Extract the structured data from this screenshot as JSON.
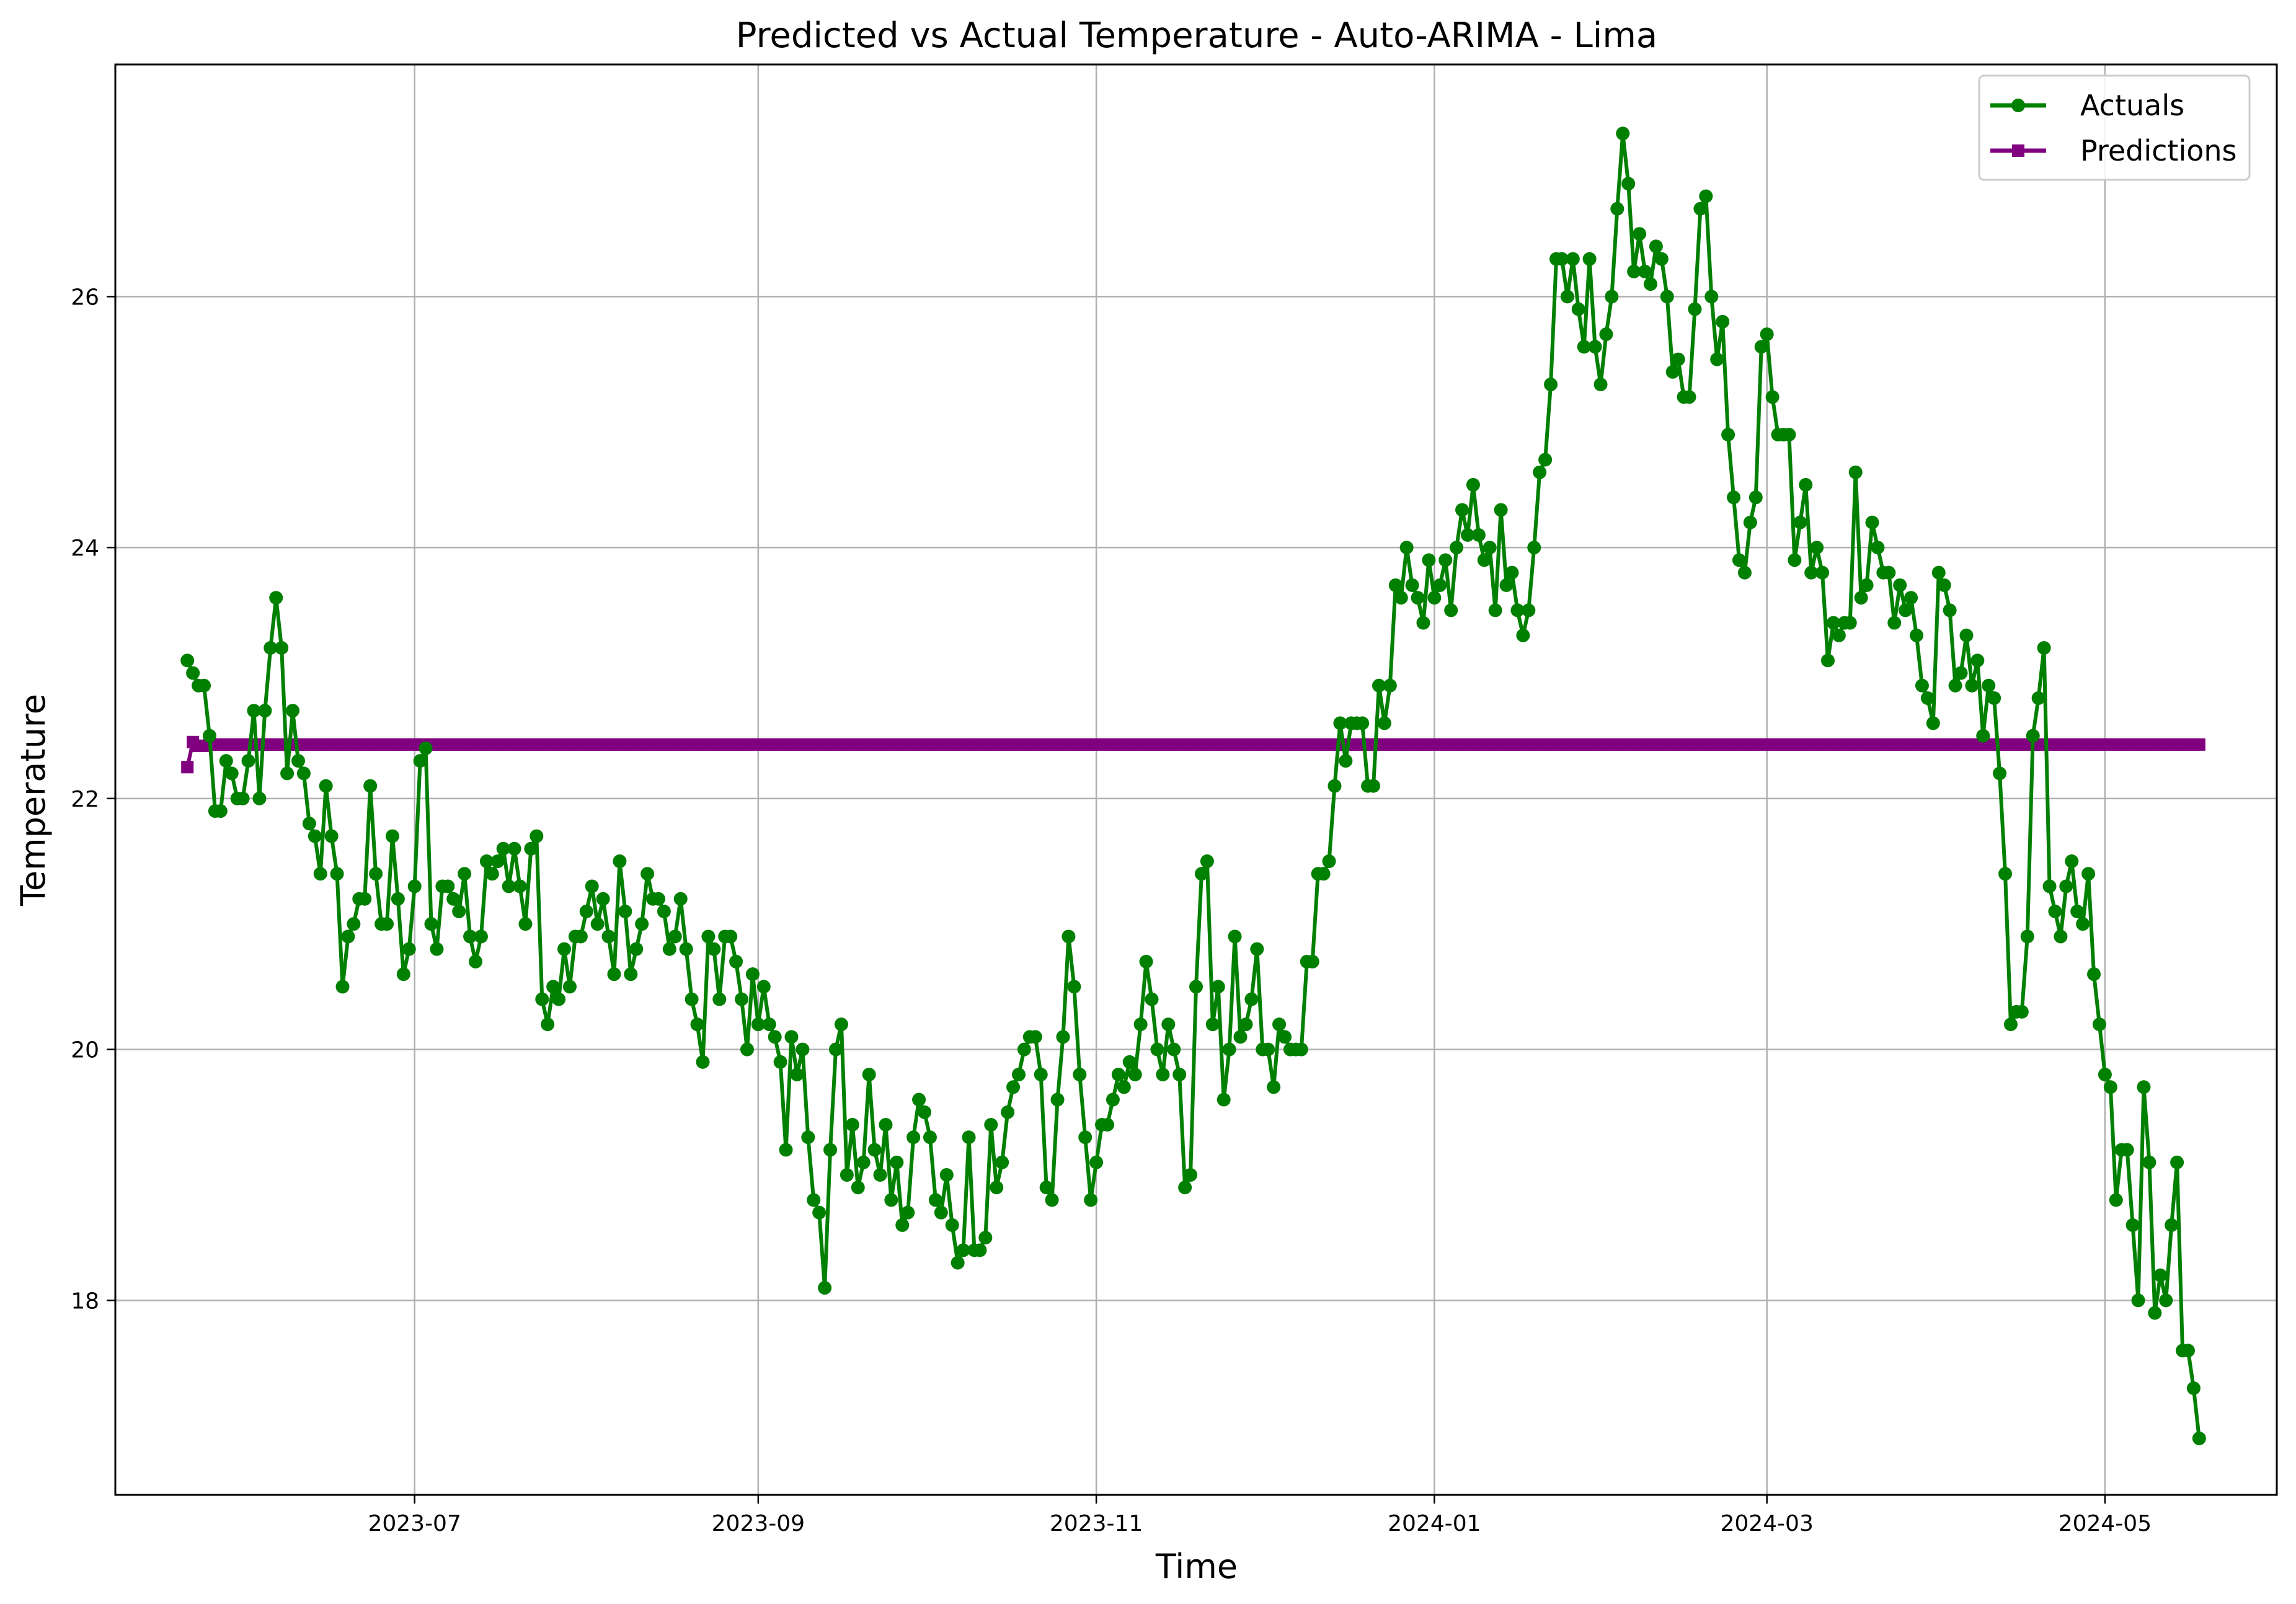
{
  "chart_data": {
    "type": "line",
    "title": "Predicted vs Actual Temperature - Auto-ARIMA - Lima",
    "xlabel": "Time",
    "ylabel": "Temperature",
    "x_range": [
      "2023-05-08",
      "2024-06-01"
    ],
    "ylim": [
      16.45,
      27.85
    ],
    "x_ticks": [
      "2023-07",
      "2023-09",
      "2023-11",
      "2024-01",
      "2024-03",
      "2024-05"
    ],
    "y_ticks": [
      18,
      20,
      22,
      24,
      26
    ],
    "grid": true,
    "legend_position": "upper right",
    "x_start": "2023-05-21",
    "series": [
      {
        "name": "Actuals",
        "color": "#008000",
        "marker": "circle",
        "values": [
          23.1,
          23.0,
          22.9,
          22.9,
          22.5,
          21.9,
          21.9,
          22.3,
          22.2,
          22.0,
          22.0,
          22.3,
          22.7,
          22.0,
          22.7,
          23.2,
          23.6,
          23.2,
          22.2,
          22.7,
          22.3,
          22.2,
          21.8,
          21.7,
          21.4,
          22.1,
          21.7,
          21.4,
          20.5,
          20.9,
          21.0,
          21.2,
          21.2,
          22.1,
          21.4,
          21.0,
          21.0,
          21.7,
          21.2,
          20.6,
          20.8,
          21.3,
          22.3,
          22.4,
          21.0,
          20.8,
          21.3,
          21.3,
          21.2,
          21.1,
          21.4,
          20.9,
          20.7,
          20.9,
          21.5,
          21.4,
          21.5,
          21.6,
          21.3,
          21.6,
          21.3,
          21.0,
          21.6,
          21.7,
          20.4,
          20.2,
          20.5,
          20.4,
          20.8,
          20.5,
          20.9,
          20.9,
          21.1,
          21.3,
          21.0,
          21.2,
          20.9,
          20.6,
          21.5,
          21.1,
          20.6,
          20.8,
          21.0,
          21.4,
          21.2,
          21.2,
          21.1,
          20.8,
          20.9,
          21.2,
          20.8,
          20.4,
          20.2,
          19.9,
          20.9,
          20.8,
          20.4,
          20.9,
          20.9,
          20.7,
          20.4,
          20.0,
          20.6,
          20.2,
          20.5,
          20.2,
          20.1,
          19.9,
          19.2,
          20.1,
          19.8,
          20.0,
          19.3,
          18.8,
          18.7,
          18.1,
          19.2,
          20.0,
          20.2,
          19.0,
          19.4,
          18.9,
          19.1,
          19.8,
          19.2,
          19.0,
          19.4,
          18.8,
          19.1,
          18.6,
          18.7,
          19.3,
          19.6,
          19.5,
          19.3,
          18.8,
          18.7,
          19.0,
          18.6,
          18.3,
          18.4,
          19.3,
          18.4,
          18.4,
          18.5,
          19.4,
          18.9,
          19.1,
          19.5,
          19.7,
          19.8,
          20.0,
          20.1,
          20.1,
          19.8,
          18.9,
          18.8,
          19.6,
          20.1,
          20.9,
          20.5,
          19.8,
          19.3,
          18.8,
          19.1,
          19.4,
          19.4,
          19.6,
          19.8,
          19.7,
          19.9,
          19.8,
          20.2,
          20.7,
          20.4,
          20.0,
          19.8,
          20.2,
          20.0,
          19.8,
          18.9,
          19.0,
          20.5,
          21.4,
          21.5,
          20.2,
          20.5,
          19.6,
          20.0,
          20.9,
          20.1,
          20.2,
          20.4,
          20.8,
          20.0,
          20.0,
          19.7,
          20.2,
          20.1,
          20.0,
          20.0,
          20.0,
          20.7,
          20.7,
          21.4,
          21.4,
          21.5,
          22.1,
          22.6,
          22.3,
          22.6,
          22.6,
          22.6,
          22.1,
          22.1,
          22.9,
          22.6,
          22.9,
          23.7,
          23.6,
          24.0,
          23.7,
          23.6,
          23.4,
          23.9,
          23.6,
          23.7,
          23.9,
          23.5,
          24.0,
          24.3,
          24.1,
          24.5,
          24.1,
          23.9,
          24.0,
          23.5,
          24.3,
          23.7,
          23.8,
          23.5,
          23.3,
          23.5,
          24.0,
          24.6,
          24.7,
          25.3,
          26.3,
          26.3,
          26.0,
          26.3,
          25.9,
          25.6,
          26.3,
          25.6,
          25.3,
          25.7,
          26.0,
          26.7,
          27.3,
          26.9,
          26.2,
          26.5,
          26.2,
          26.1,
          26.4,
          26.3,
          26.0,
          25.4,
          25.5,
          25.2,
          25.2,
          25.9,
          26.7,
          26.8,
          26.0,
          25.5,
          25.8,
          24.9,
          24.4,
          23.9,
          23.8,
          24.2,
          24.4,
          25.6,
          25.7,
          25.2,
          24.9,
          24.9,
          24.9,
          23.9,
          24.2,
          24.5,
          23.8,
          24.0,
          23.8,
          23.1,
          23.4,
          23.3,
          23.4,
          23.4,
          24.6,
          23.6,
          23.7,
          24.2,
          24.0,
          23.8,
          23.8,
          23.4,
          23.7,
          23.5,
          23.6,
          23.3,
          22.9,
          22.8,
          22.6,
          23.8,
          23.7,
          23.5,
          22.9,
          23.0,
          23.3,
          22.9,
          23.1,
          22.5,
          22.9,
          22.8,
          22.2,
          21.4,
          20.2,
          20.3,
          20.3,
          20.9,
          22.5,
          22.8,
          23.2,
          21.3,
          21.1,
          20.9,
          21.3,
          21.5,
          21.1,
          21.0,
          21.4,
          20.6,
          20.2,
          19.8,
          19.7,
          18.8,
          19.2,
          19.2,
          18.6,
          18.0,
          19.7,
          19.1,
          17.9,
          18.2,
          18.0,
          18.6,
          19.1,
          17.6,
          17.6,
          17.3,
          16.9
        ]
      },
      {
        "name": "Predictions",
        "color": "#800080",
        "marker": "square",
        "values": [
          22.25,
          22.45,
          22.42,
          22.42,
          22.43,
          22.43,
          22.43,
          22.43,
          22.43,
          22.43
        ]
      }
    ]
  }
}
